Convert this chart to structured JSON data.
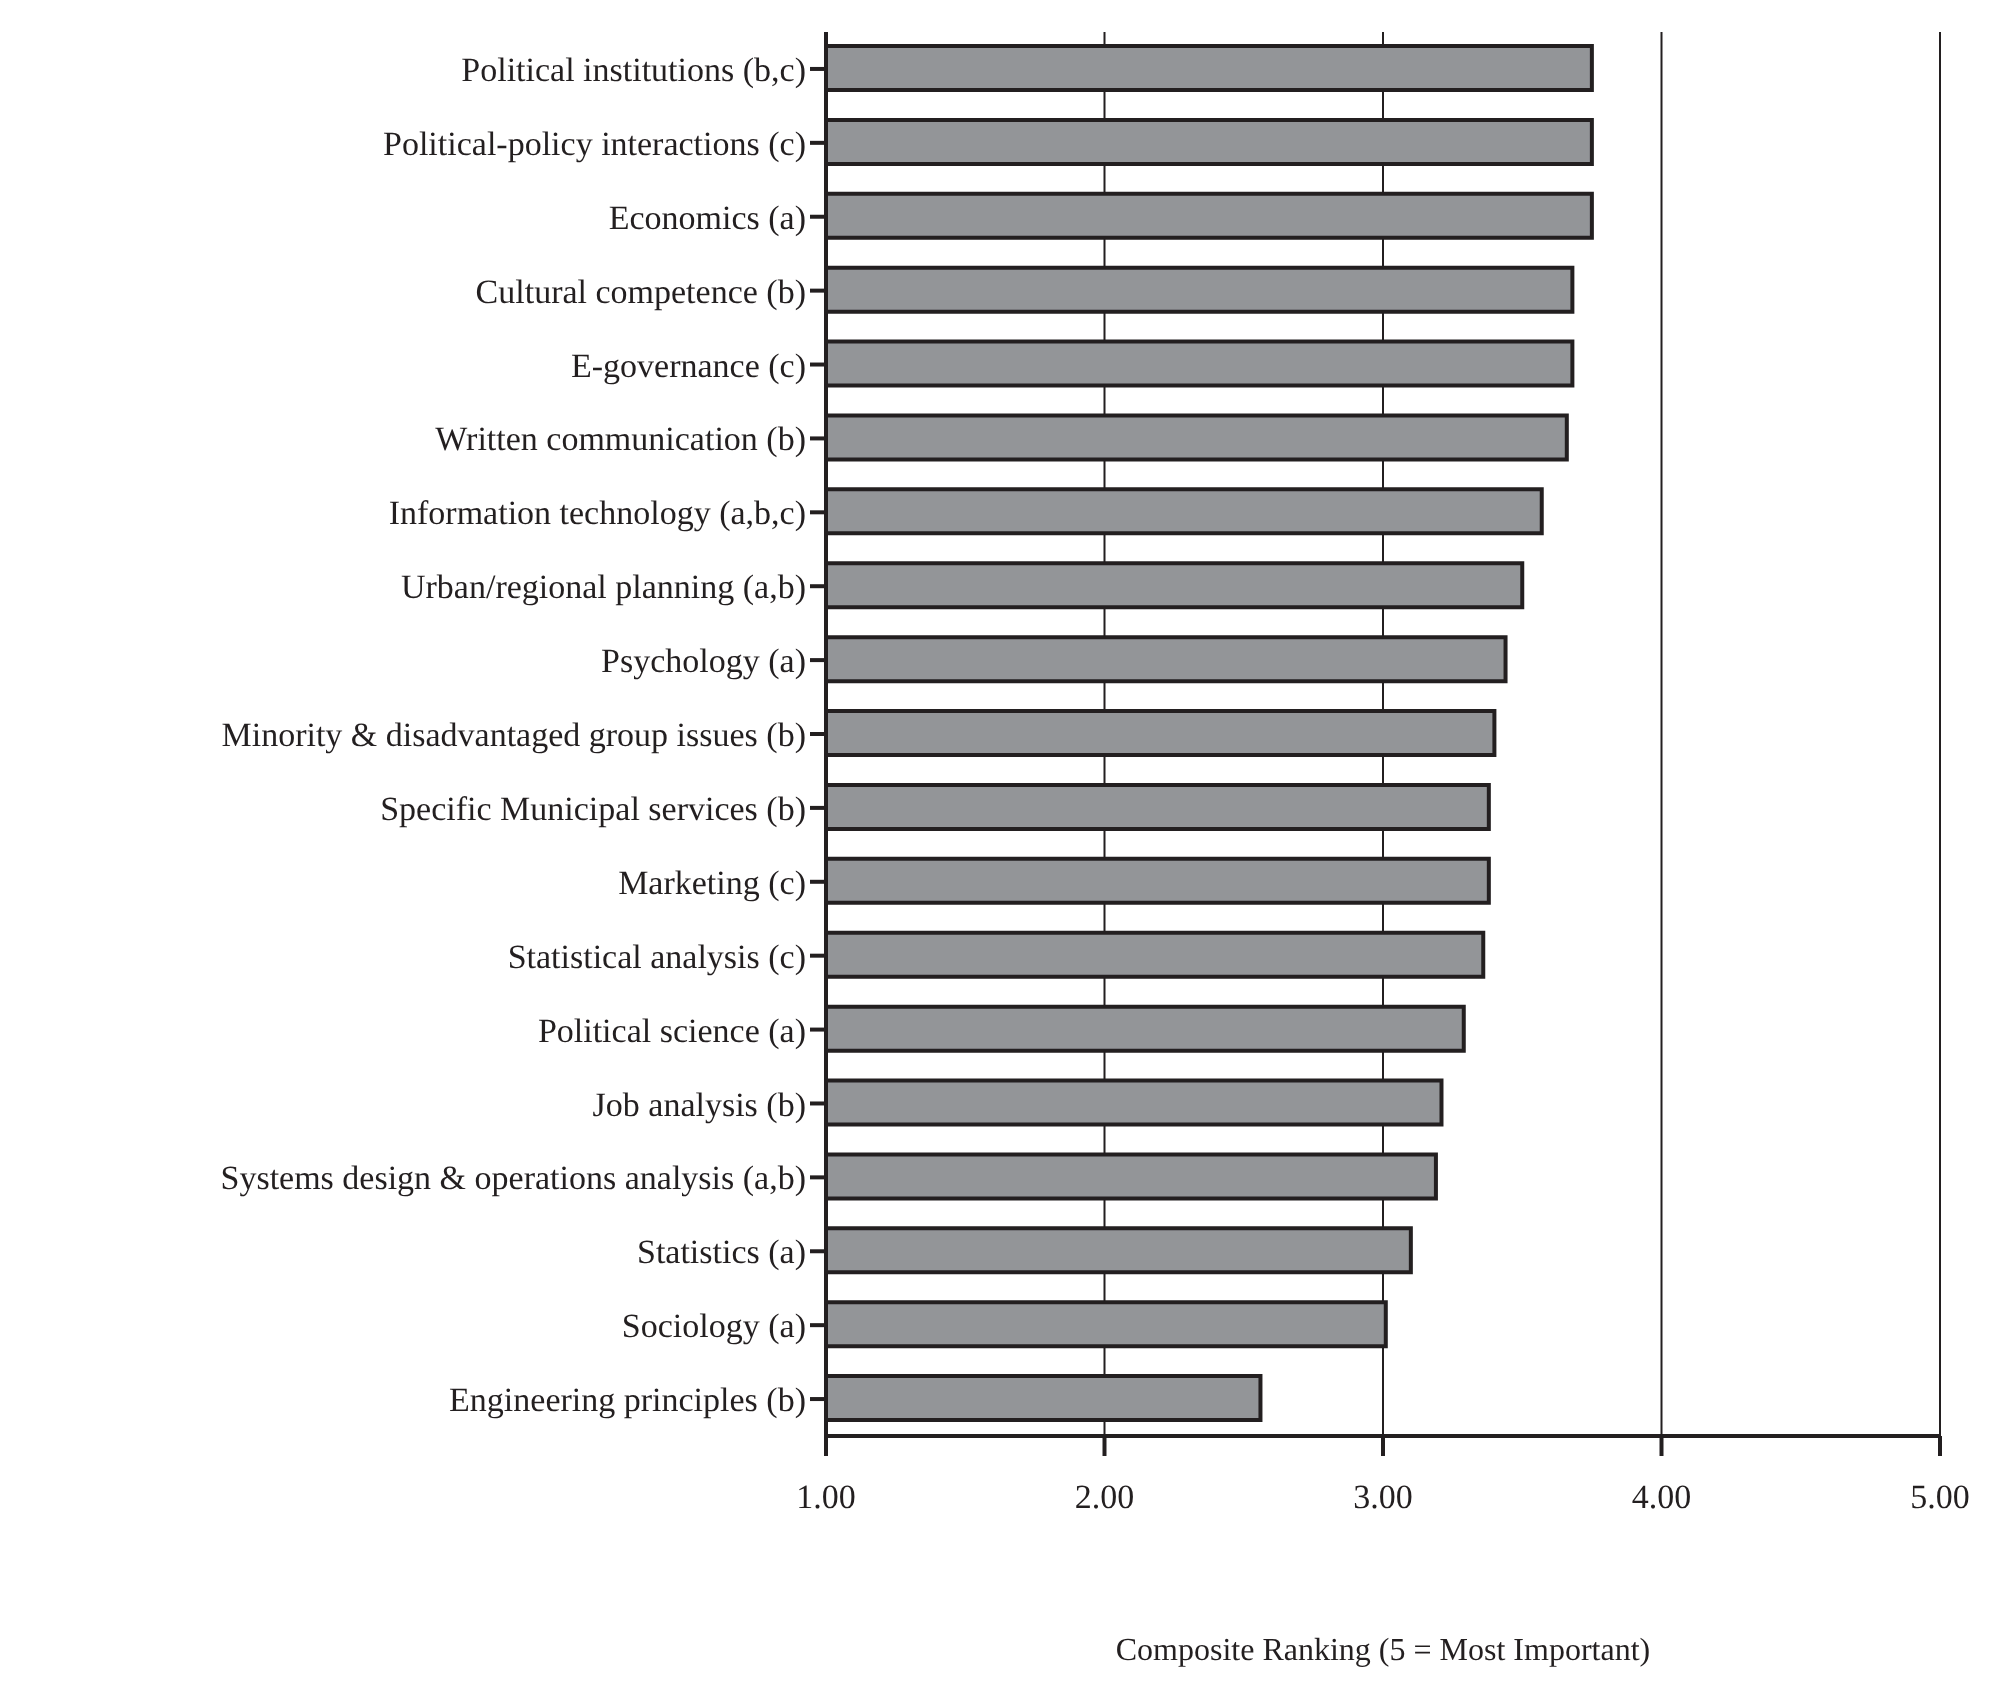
{
  "chart_data": {
    "type": "bar",
    "orientation": "horizontal",
    "xlabel": "Composite Ranking (5 = Most Important)",
    "categories": [
      "Political institutions (b,c)",
      "Political-policy interactions (c)",
      "Economics (a)",
      "Cultural competence (b)",
      "E-governance (c)",
      "Written communication (b)",
      "Information technology (a,b,c)",
      "Urban/regional planning (a,b)",
      "Psychology (a)",
      "Minority & disadvantaged group issues (b)",
      "Specific Municipal services (b)",
      "Marketing (c)",
      "Statistical analysis (c)",
      "Political science (a)",
      "Job analysis (b)",
      "Systems design & operations analysis (a,b)",
      "Statistics (a)",
      "Sociology (a)",
      "Engineering principles (b)"
    ],
    "values": [
      3.75,
      3.75,
      3.75,
      3.68,
      3.68,
      3.66,
      3.57,
      3.5,
      3.44,
      3.4,
      3.38,
      3.38,
      3.36,
      3.29,
      3.21,
      3.19,
      3.1,
      3.01,
      2.56
    ],
    "color": "#939598",
    "xlim": [
      1,
      5
    ],
    "xticks": [
      {
        "value": 1,
        "label": "1.00"
      },
      {
        "value": 2,
        "label": "2.00"
      },
      {
        "value": 3,
        "label": "3.00"
      },
      {
        "value": 4,
        "label": "4.00"
      },
      {
        "value": 5,
        "label": "5.00"
      }
    ],
    "grid": "x",
    "legend": false
  }
}
